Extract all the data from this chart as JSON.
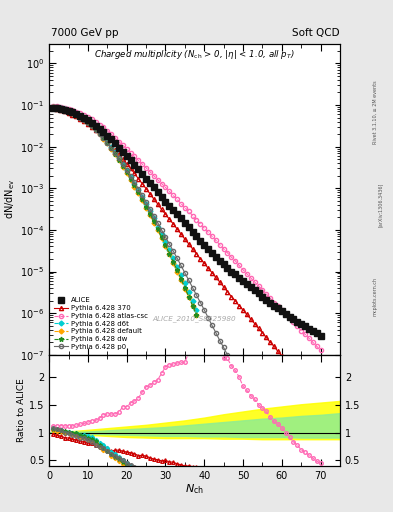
{
  "title_left": "7000 GeV pp",
  "title_right": "Soft QCD",
  "ylabel_main": "dN/dN_{ev}",
  "ylabel_ratio": "Ratio to ALICE",
  "xlabel": "N_{ch}",
  "watermark": "ALICE_2010_S8625980",
  "background_color": "#e8e8e8",
  "series": [
    {
      "name": "ALICE",
      "marker": "s",
      "color": "#111111",
      "linestyle": "none",
      "markersize": 4.5,
      "fillstyle": "full",
      "x": [
        1,
        2,
        3,
        4,
        5,
        6,
        7,
        8,
        9,
        10,
        11,
        12,
        13,
        14,
        15,
        16,
        17,
        18,
        19,
        20,
        21,
        22,
        23,
        24,
        25,
        26,
        27,
        28,
        29,
        30,
        31,
        32,
        33,
        34,
        35,
        36,
        37,
        38,
        39,
        40,
        41,
        42,
        43,
        44,
        45,
        46,
        47,
        48,
        49,
        50,
        51,
        52,
        53,
        54,
        55,
        56,
        57,
        58,
        59,
        60,
        61,
        62,
        63,
        64,
        65,
        66,
        67,
        68,
        69,
        70
      ],
      "y": [
        0.085,
        0.083,
        0.08,
        0.077,
        0.072,
        0.067,
        0.061,
        0.055,
        0.049,
        0.043,
        0.037,
        0.032,
        0.027,
        0.022,
        0.018,
        0.015,
        0.012,
        0.0095,
        0.0075,
        0.006,
        0.0047,
        0.0037,
        0.0029,
        0.0022,
        0.0017,
        0.00135,
        0.00105,
        0.00082,
        0.00063,
        0.00048,
        0.00038,
        0.0003,
        0.00024,
        0.00019,
        0.00015,
        0.000115,
        9e-05,
        7e-05,
        5.5e-05,
        4.4e-05,
        3.5e-05,
        2.8e-05,
        2.2e-05,
        1.8e-05,
        1.5e-05,
        1.2e-05,
        1e-05,
        8.5e-06,
        7e-06,
        6e-06,
        5e-06,
        4.2e-06,
        3.5e-06,
        3e-06,
        2.5e-06,
        2.1e-06,
        1.8e-06,
        1.5e-06,
        1.3e-06,
        1.1e-06,
        9.5e-07,
        8.2e-07,
        7.2e-07,
        6.2e-07,
        5.5e-07,
        4.8e-07,
        4.2e-07,
        3.7e-07,
        3.3e-07,
        2.9e-07
      ]
    },
    {
      "name": "Pythia 6.428 370",
      "marker": "^",
      "color": "#cc0000",
      "linestyle": "-",
      "markersize": 3,
      "fillstyle": "none",
      "x": [
        1,
        2,
        3,
        4,
        5,
        6,
        7,
        8,
        9,
        10,
        11,
        12,
        13,
        14,
        15,
        16,
        17,
        18,
        19,
        20,
        21,
        22,
        23,
        24,
        25,
        26,
        27,
        28,
        29,
        30,
        31,
        32,
        33,
        34,
        35,
        36,
        37,
        38,
        39,
        40,
        41,
        42,
        43,
        44,
        45,
        46,
        47,
        48,
        49,
        50,
        51,
        52,
        53,
        54,
        55,
        56,
        57,
        58,
        59,
        60,
        61,
        62,
        63,
        64,
        65,
        66,
        67,
        68,
        69,
        70
      ],
      "y": [
        0.083,
        0.079,
        0.075,
        0.07,
        0.065,
        0.059,
        0.053,
        0.047,
        0.041,
        0.035,
        0.03,
        0.025,
        0.021,
        0.017,
        0.013,
        0.01,
        0.0082,
        0.0065,
        0.005,
        0.0039,
        0.003,
        0.0023,
        0.0017,
        0.0013,
        0.00098,
        0.00074,
        0.00055,
        0.00042,
        0.00031,
        0.00024,
        0.00018,
        0.00014,
        0.000105,
        8e-05,
        6e-05,
        4.6e-05,
        3.5e-05,
        2.7e-05,
        2e-05,
        1.6e-05,
        1.2e-05,
        9.4e-06,
        7.2e-06,
        5.6e-06,
        4.3e-06,
        3.3e-06,
        2.5e-06,
        2e-06,
        1.5e-06,
        1.2e-06,
        9.3e-07,
        7.2e-07,
        5.6e-07,
        4.3e-07,
        3.4e-07,
        2.6e-07,
        2e-07,
        1.6e-07,
        1.2e-07,
        9.5e-08,
        7.5e-08,
        5.9e-08,
        4.6e-08,
        3.6e-08,
        2.8e-08,
        2.2e-08,
        1.7e-08,
        1.3e-08,
        1e-08,
        7.8e-09
      ]
    },
    {
      "name": "Pythia 6.428 atlas-csc",
      "marker": "o",
      "color": "#ff69b4",
      "linestyle": "--",
      "markersize": 3,
      "fillstyle": "none",
      "x": [
        1,
        2,
        3,
        4,
        5,
        6,
        7,
        8,
        9,
        10,
        11,
        12,
        13,
        14,
        15,
        16,
        17,
        18,
        19,
        20,
        21,
        22,
        23,
        24,
        25,
        26,
        27,
        28,
        29,
        30,
        31,
        32,
        33,
        34,
        35,
        36,
        37,
        38,
        39,
        40,
        41,
        42,
        43,
        44,
        45,
        46,
        47,
        48,
        49,
        50,
        51,
        52,
        53,
        54,
        55,
        56,
        57,
        58,
        59,
        60,
        61,
        62,
        63,
        64,
        65,
        66,
        67,
        68,
        69,
        70
      ],
      "y": [
        0.095,
        0.093,
        0.09,
        0.086,
        0.081,
        0.075,
        0.069,
        0.063,
        0.057,
        0.051,
        0.045,
        0.039,
        0.034,
        0.029,
        0.024,
        0.02,
        0.016,
        0.013,
        0.011,
        0.0088,
        0.0072,
        0.0058,
        0.0047,
        0.0038,
        0.0031,
        0.0025,
        0.002,
        0.0016,
        0.0013,
        0.00105,
        0.00084,
        0.00067,
        0.00054,
        0.00043,
        0.00034,
        0.00028,
        0.00022,
        0.00017,
        0.00014,
        0.00011,
        8.8e-05,
        7e-05,
        5.6e-05,
        4.4e-05,
        3.5e-05,
        2.8e-05,
        2.2e-05,
        1.8e-05,
        1.4e-05,
        1.1e-05,
        8.8e-06,
        7e-06,
        5.6e-06,
        4.5e-06,
        3.6e-06,
        2.9e-06,
        2.3e-06,
        1.8e-06,
        1.5e-06,
        1.2e-06,
        9.5e-07,
        7.5e-07,
        6e-07,
        4.8e-07,
        3.8e-07,
        3.1e-07,
        2.5e-07,
        2e-07,
        1.6e-07,
        1.3e-07
      ]
    },
    {
      "name": "Pythia 6.428 d6t",
      "marker": "D",
      "color": "#00ced1",
      "linestyle": "--",
      "markersize": 2.5,
      "fillstyle": "full",
      "x": [
        1,
        2,
        3,
        4,
        5,
        6,
        7,
        8,
        9,
        10,
        11,
        12,
        13,
        14,
        15,
        16,
        17,
        18,
        19,
        20,
        21,
        22,
        23,
        24,
        25,
        26,
        27,
        28,
        29,
        30,
        31,
        32,
        33,
        34,
        35,
        36,
        37,
        38
      ],
      "y": [
        0.09,
        0.087,
        0.083,
        0.078,
        0.073,
        0.067,
        0.06,
        0.053,
        0.047,
        0.04,
        0.034,
        0.028,
        0.022,
        0.017,
        0.013,
        0.0098,
        0.0073,
        0.0053,
        0.0038,
        0.0027,
        0.0019,
        0.0013,
        0.0009,
        0.00062,
        0.00042,
        0.00028,
        0.00019,
        0.00012,
        8e-05,
        5.1e-05,
        3.3e-05,
        2.1e-05,
        1.3e-05,
        8.3e-06,
        5.2e-06,
        3.2e-06,
        2e-06,
        1.2e-06
      ]
    },
    {
      "name": "Pythia 6.428 default",
      "marker": "D",
      "color": "#ffa500",
      "linestyle": "--",
      "markersize": 2.5,
      "fillstyle": "full",
      "x": [
        1,
        2,
        3,
        4,
        5,
        6,
        7,
        8,
        9,
        10,
        11,
        12,
        13,
        14,
        15,
        16,
        17,
        18,
        19,
        20,
        21,
        22,
        23,
        24,
        25,
        26,
        27,
        28,
        29,
        30,
        31,
        32,
        33,
        34,
        35,
        36,
        37,
        38
      ],
      "y": [
        0.089,
        0.086,
        0.082,
        0.077,
        0.071,
        0.065,
        0.058,
        0.051,
        0.044,
        0.038,
        0.032,
        0.026,
        0.02,
        0.015,
        0.012,
        0.0088,
        0.0065,
        0.0047,
        0.0033,
        0.0023,
        0.0016,
        0.0011,
        0.00075,
        0.00051,
        0.00034,
        0.00023,
        0.00015,
        0.0001,
        6.4e-05,
        4.1e-05,
        2.6e-05,
        1.6e-05,
        1e-05,
        6.3e-06,
        3.9e-06,
        2.4e-06,
        1.5e-06,
        9.1e-07
      ]
    },
    {
      "name": "Pythia 6.428 dw",
      "marker": "*",
      "color": "#228b22",
      "linestyle": "--",
      "markersize": 3.5,
      "fillstyle": "full",
      "x": [
        1,
        2,
        3,
        4,
        5,
        6,
        7,
        8,
        9,
        10,
        11,
        12,
        13,
        14,
        15,
        16,
        17,
        18,
        19,
        20,
        21,
        22,
        23,
        24,
        25,
        26,
        27,
        28,
        29,
        30,
        31,
        32,
        33,
        34,
        35,
        36,
        37,
        38
      ],
      "y": [
        0.091,
        0.088,
        0.084,
        0.079,
        0.073,
        0.067,
        0.06,
        0.053,
        0.046,
        0.039,
        0.033,
        0.027,
        0.021,
        0.016,
        0.012,
        0.0091,
        0.0067,
        0.0049,
        0.0035,
        0.0025,
        0.0017,
        0.0012,
        0.0008,
        0.00054,
        0.00036,
        0.00024,
        0.00016,
        0.000104,
        6.7e-05,
        4.3e-05,
        2.7e-05,
        1.7e-05,
        1.1e-05,
        6.7e-06,
        4.1e-06,
        2.5e-06,
        1.5e-06,
        9.2e-07
      ]
    },
    {
      "name": "Pythia 6.428 p0",
      "marker": "o",
      "color": "#696969",
      "linestyle": "-",
      "markersize": 3,
      "fillstyle": "none",
      "x": [
        1,
        2,
        3,
        4,
        5,
        6,
        7,
        8,
        9,
        10,
        11,
        12,
        13,
        14,
        15,
        16,
        17,
        18,
        19,
        20,
        21,
        22,
        23,
        24,
        25,
        26,
        27,
        28,
        29,
        30,
        31,
        32,
        33,
        34,
        35,
        36,
        37,
        38,
        39,
        40,
        41,
        42,
        43,
        44,
        45,
        46,
        47
      ],
      "y": [
        0.092,
        0.088,
        0.083,
        0.077,
        0.071,
        0.064,
        0.057,
        0.05,
        0.044,
        0.037,
        0.031,
        0.025,
        0.02,
        0.016,
        0.012,
        0.0093,
        0.007,
        0.0052,
        0.0038,
        0.0027,
        0.002,
        0.0014,
        0.00098,
        0.00068,
        0.00047,
        0.00032,
        0.00022,
        0.00015,
        0.0001,
        6.8e-05,
        4.6e-05,
        3.1e-05,
        2.1e-05,
        1.4e-05,
        9.3e-06,
        6.2e-06,
        4.1e-06,
        2.7e-06,
        1.8e-06,
        1.2e-06,
        7.8e-07,
        5.1e-07,
        3.4e-07,
        2.2e-07,
        1.5e-07,
        9.8e-08,
        6.5e-08
      ]
    }
  ],
  "ylim_main": [
    1e-07,
    3.0
  ],
  "ylim_ratio": [
    0.4,
    2.4
  ],
  "xlim": [
    0,
    75
  ],
  "ratio_yticks": [
    0.5,
    1.0,
    1.5,
    2.0
  ],
  "ratio_yticklabels": [
    "0.5",
    "1",
    "1.5",
    "2"
  ]
}
